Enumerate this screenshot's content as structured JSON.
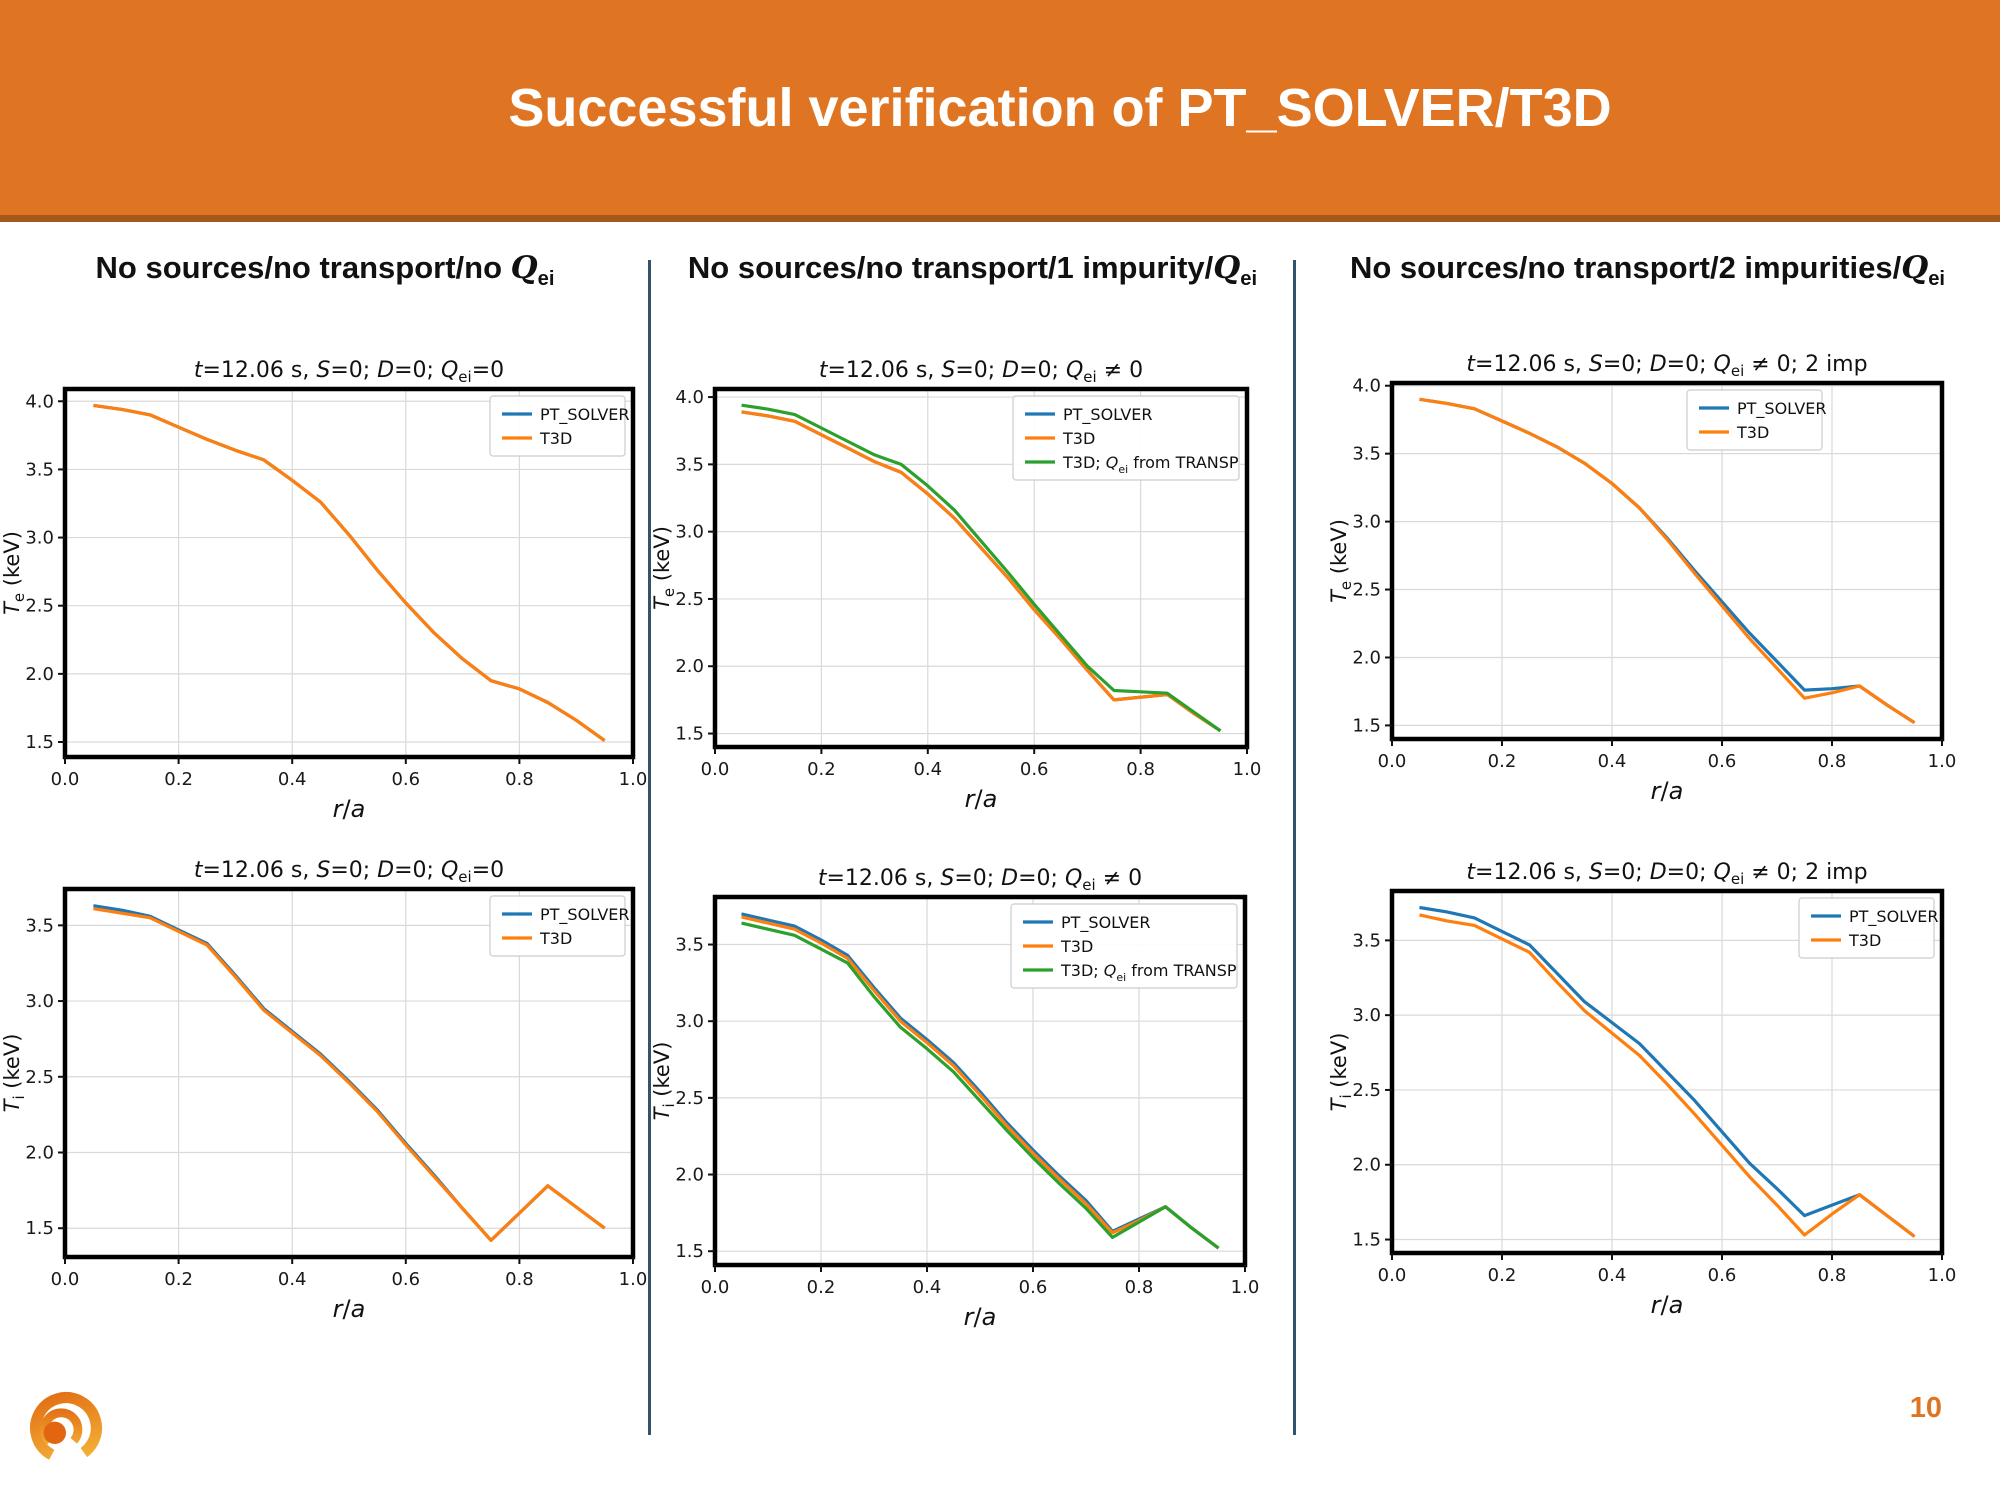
{
  "header": {
    "title": "Successful verification of PT_SOLVER/T3D",
    "bg_color": "#DF7522",
    "border_color": "#A4581C",
    "text_color": "#FFFFFF"
  },
  "page_number": "10",
  "columns": [
    {
      "heading": "No sources/no transport/no *Q*_{ei}"
    },
    {
      "heading": "No sources/no transport/1 impurity/*Q*_{ei}"
    },
    {
      "heading": "No sources/no transport/2 impurities/*Q*_{ei}"
    }
  ],
  "colors": {
    "divider": "#35526B",
    "grid": "#D9D9D9",
    "frame": "#000000",
    "accent_orange": "#DF7522",
    "logo": [
      "#F6B93B",
      "#E06A12"
    ]
  },
  "chart_data": [
    {
      "id": "te-no-qei",
      "type": "line",
      "title": "*t*=12.06 s, *S*=0; *D*=0; *Q*_{ei}=0",
      "xlabel": "*r*/*a*",
      "ylabel": "*T*_{e} (keV)",
      "xlim": [
        0,
        1
      ],
      "ylim": [
        1.39,
        4.09
      ],
      "xticks": [
        0.0,
        0.2,
        0.4,
        0.6,
        0.8,
        1.0
      ],
      "yticks": [
        1.5,
        2.0,
        2.5,
        3.0,
        3.5,
        4.0
      ],
      "grid": true,
      "legend_position": "upper right",
      "x": [
        0.05,
        0.1,
        0.15,
        0.2,
        0.25,
        0.3,
        0.35,
        0.4,
        0.45,
        0.5,
        0.55,
        0.6,
        0.65,
        0.7,
        0.75,
        0.8,
        0.85,
        0.9,
        0.95
      ],
      "series": [
        {
          "name": "PT_SOLVER",
          "color": "#1f77b4",
          "values": [
            3.97,
            3.94,
            3.9,
            3.81,
            3.72,
            3.64,
            3.57,
            3.42,
            3.26,
            3.02,
            2.76,
            2.52,
            2.3,
            2.11,
            1.95,
            1.89,
            1.79,
            1.66,
            1.51
          ]
        },
        {
          "name": "T3D",
          "color": "#ff7f0e",
          "values": [
            3.97,
            3.94,
            3.9,
            3.81,
            3.72,
            3.64,
            3.57,
            3.42,
            3.26,
            3.02,
            2.76,
            2.52,
            2.3,
            2.11,
            1.95,
            1.89,
            1.79,
            1.66,
            1.51
          ]
        }
      ]
    },
    {
      "id": "te-1imp",
      "type": "line",
      "title": "*t*=12.06 s, *S*=0; *D*=0; *Q*_{ei} ≠ 0",
      "xlabel": "*r*/*a*",
      "ylabel": "*T*_{e} (keV)",
      "xlim": [
        0,
        1
      ],
      "ylim": [
        1.4,
        4.06
      ],
      "xticks": [
        0.0,
        0.2,
        0.4,
        0.6,
        0.8,
        1.0
      ],
      "yticks": [
        1.5,
        2.0,
        2.5,
        3.0,
        3.5,
        4.0
      ],
      "grid": true,
      "legend_position": "upper right",
      "x": [
        0.05,
        0.1,
        0.15,
        0.2,
        0.25,
        0.3,
        0.35,
        0.4,
        0.45,
        0.5,
        0.55,
        0.6,
        0.65,
        0.7,
        0.75,
        0.8,
        0.85,
        0.9,
        0.95
      ],
      "series": [
        {
          "name": "PT_SOLVER",
          "color": "#1f77b4",
          "values": [
            3.89,
            3.86,
            3.82,
            3.72,
            3.62,
            3.52,
            3.44,
            3.28,
            3.1,
            2.88,
            2.66,
            2.42,
            2.2,
            1.97,
            1.75,
            1.77,
            1.79,
            1.65,
            1.52
          ]
        },
        {
          "name": "T3D",
          "color": "#ff7f0e",
          "values": [
            3.89,
            3.86,
            3.82,
            3.72,
            3.62,
            3.52,
            3.44,
            3.28,
            3.1,
            2.88,
            2.66,
            2.42,
            2.2,
            1.97,
            1.75,
            1.77,
            1.79,
            1.65,
            1.52
          ]
        },
        {
          "name": "T3D; *Q*_{ei} from TRANSP",
          "color": "#2ca02c",
          "values": [
            3.94,
            3.91,
            3.87,
            3.77,
            3.67,
            3.57,
            3.5,
            3.34,
            3.16,
            2.93,
            2.7,
            2.46,
            2.23,
            2.0,
            1.82,
            1.81,
            1.8,
            1.66,
            1.52
          ]
        }
      ]
    },
    {
      "id": "te-2imp",
      "type": "line",
      "title": "*t*=12.06 s, *S*=0; *D*=0; *Q*_{ei} ≠ 0; 2 imp",
      "xlabel": "*r*/*a*",
      "ylabel": "*T*_{e} (keV)",
      "xlim": [
        0,
        1
      ],
      "ylim": [
        1.4,
        4.02
      ],
      "xticks": [
        0.0,
        0.2,
        0.4,
        0.6,
        0.8,
        1.0
      ],
      "yticks": [
        1.5,
        2.0,
        2.5,
        3.0,
        3.5,
        4.0
      ],
      "grid": true,
      "legend_position": "upper right",
      "x": [
        0.05,
        0.1,
        0.15,
        0.2,
        0.25,
        0.3,
        0.35,
        0.4,
        0.45,
        0.5,
        0.55,
        0.6,
        0.65,
        0.7,
        0.75,
        0.8,
        0.85,
        0.9,
        0.95
      ],
      "series": [
        {
          "name": "PT_SOLVER",
          "color": "#1f77b4",
          "values": [
            3.9,
            3.87,
            3.83,
            3.74,
            3.65,
            3.55,
            3.43,
            3.28,
            3.1,
            2.88,
            2.64,
            2.41,
            2.18,
            1.97,
            1.76,
            1.77,
            1.79,
            1.65,
            1.52
          ]
        },
        {
          "name": "T3D",
          "color": "#ff7f0e",
          "values": [
            3.9,
            3.87,
            3.83,
            3.74,
            3.65,
            3.55,
            3.43,
            3.28,
            3.1,
            2.87,
            2.62,
            2.38,
            2.14,
            1.92,
            1.7,
            1.74,
            1.79,
            1.65,
            1.52
          ]
        }
      ]
    },
    {
      "id": "ti-no-qei",
      "type": "line",
      "title": "*t*=12.06 s, *S*=0; *D*=0; *Q*_{ei}=0",
      "xlabel": "*r*/*a*",
      "ylabel": "*T*_{i} (keV)",
      "xlim": [
        0,
        1
      ],
      "ylim": [
        1.31,
        3.74
      ],
      "xticks": [
        0.0,
        0.2,
        0.4,
        0.6,
        0.8,
        1.0
      ],
      "yticks": [
        1.5,
        2.0,
        2.5,
        3.0,
        3.5
      ],
      "grid": true,
      "legend_position": "upper right",
      "x": [
        0.05,
        0.1,
        0.15,
        0.2,
        0.25,
        0.3,
        0.35,
        0.4,
        0.45,
        0.5,
        0.55,
        0.6,
        0.65,
        0.7,
        0.75,
        0.8,
        0.85,
        0.9,
        0.95
      ],
      "series": [
        {
          "name": "PT_SOLVER",
          "color": "#1f77b4",
          "values": [
            3.63,
            3.6,
            3.56,
            3.47,
            3.38,
            3.17,
            2.95,
            2.8,
            2.65,
            2.47,
            2.28,
            2.06,
            1.85,
            1.63,
            1.42,
            1.6,
            1.78,
            1.64,
            1.5
          ]
        },
        {
          "name": "T3D",
          "color": "#ff7f0e",
          "values": [
            3.61,
            3.58,
            3.55,
            3.46,
            3.37,
            3.16,
            2.94,
            2.79,
            2.64,
            2.46,
            2.27,
            2.05,
            1.84,
            1.63,
            1.42,
            1.6,
            1.78,
            1.64,
            1.5
          ]
        }
      ]
    },
    {
      "id": "ti-1imp",
      "type": "line",
      "title": "*t*=12.06 s, *S*=0; *D*=0; *Q*_{ei} ≠ 0",
      "xlabel": "*r*/*a*",
      "ylabel": "*T*_{i} (keV)",
      "xlim": [
        0,
        1
      ],
      "ylim": [
        1.41,
        3.81
      ],
      "xticks": [
        0.0,
        0.2,
        0.4,
        0.6,
        0.8,
        1.0
      ],
      "yticks": [
        1.5,
        2.0,
        2.5,
        3.0,
        3.5
      ],
      "grid": true,
      "legend_position": "upper right",
      "x": [
        0.05,
        0.1,
        0.15,
        0.2,
        0.25,
        0.3,
        0.35,
        0.4,
        0.45,
        0.5,
        0.55,
        0.6,
        0.65,
        0.7,
        0.75,
        0.8,
        0.85,
        0.9,
        0.95
      ],
      "series": [
        {
          "name": "PT_SOLVER",
          "color": "#1f77b4",
          "values": [
            3.7,
            3.66,
            3.62,
            3.53,
            3.43,
            3.22,
            3.02,
            2.88,
            2.73,
            2.54,
            2.34,
            2.16,
            1.99,
            1.83,
            1.63,
            1.71,
            1.79,
            1.65,
            1.52
          ]
        },
        {
          "name": "T3D",
          "color": "#ff7f0e",
          "values": [
            3.68,
            3.64,
            3.6,
            3.51,
            3.41,
            3.2,
            3.0,
            2.86,
            2.71,
            2.52,
            2.32,
            2.14,
            1.97,
            1.81,
            1.62,
            1.7,
            1.79,
            1.65,
            1.52
          ]
        },
        {
          "name": "T3D; *Q*_{ei} from TRANSP",
          "color": "#2ca02c",
          "values": [
            3.64,
            3.6,
            3.56,
            3.47,
            3.38,
            3.16,
            2.96,
            2.82,
            2.67,
            2.48,
            2.29,
            2.11,
            1.94,
            1.78,
            1.59,
            1.69,
            1.79,
            1.65,
            1.52
          ]
        }
      ]
    },
    {
      "id": "ti-2imp",
      "type": "line",
      "title": "*t*=12.06 s, *S*=0; *D*=0; *Q*_{ei} ≠ 0; 2 imp",
      "xlabel": "*r*/*a*",
      "ylabel": "*T*_{i} (keV)",
      "xlim": [
        0,
        1
      ],
      "ylim": [
        1.41,
        3.83
      ],
      "xticks": [
        0.0,
        0.2,
        0.4,
        0.6,
        0.8,
        1.0
      ],
      "yticks": [
        1.5,
        2.0,
        2.5,
        3.0,
        3.5
      ],
      "grid": true,
      "legend_position": "upper right",
      "x": [
        0.05,
        0.1,
        0.15,
        0.2,
        0.25,
        0.3,
        0.35,
        0.4,
        0.45,
        0.5,
        0.55,
        0.6,
        0.65,
        0.7,
        0.75,
        0.8,
        0.85,
        0.9,
        0.95
      ],
      "series": [
        {
          "name": "PT_SOLVER",
          "color": "#1f77b4",
          "values": [
            3.72,
            3.69,
            3.65,
            3.56,
            3.47,
            3.28,
            3.09,
            2.95,
            2.81,
            2.62,
            2.43,
            2.22,
            2.01,
            1.84,
            1.66,
            1.73,
            1.8,
            1.66,
            1.52
          ]
        },
        {
          "name": "T3D",
          "color": "#ff7f0e",
          "values": [
            3.67,
            3.63,
            3.6,
            3.51,
            3.42,
            3.22,
            3.03,
            2.88,
            2.73,
            2.54,
            2.34,
            2.13,
            1.92,
            1.73,
            1.53,
            1.67,
            1.8,
            1.66,
            1.52
          ]
        }
      ]
    }
  ]
}
